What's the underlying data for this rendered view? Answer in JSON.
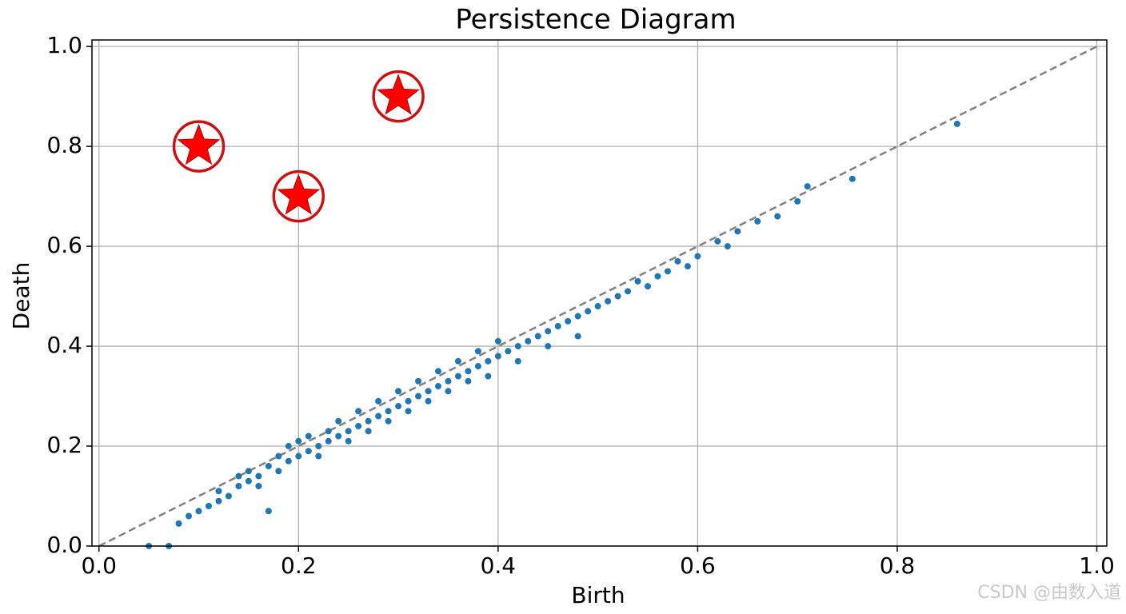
{
  "chart_data": {
    "type": "scatter",
    "title": "Persistence Diagram",
    "xlabel": "Birth",
    "ylabel": "Death",
    "xlim": [
      -0.007,
      1.01
    ],
    "ylim": [
      0,
      1.013
    ],
    "xticks": [
      {
        "value": 0,
        "label": "0.0"
      },
      0.2,
      0.4,
      0.6,
      0.8,
      {
        "value": 1,
        "label": "1.0"
      }
    ],
    "yticks": [
      {
        "value": 0,
        "label": "0.0"
      },
      0.2,
      0.4,
      0.6,
      0.8,
      {
        "value": 1,
        "label": "1.0"
      }
    ],
    "grid": true,
    "diagonal": {
      "x": [
        0,
        1
      ],
      "values": [
        0,
        1
      ],
      "color": "#808080",
      "style": "dashed"
    },
    "series": [
      {
        "color": "#1f77b4",
        "marker": "dot",
        "x": [
          0.05,
          0.07,
          0.08,
          0.09,
          0.1,
          0.11,
          0.12,
          0.12,
          0.13,
          0.14,
          0.14,
          0.15,
          0.15,
          0.16,
          0.16,
          0.17,
          0.17,
          0.18,
          0.18,
          0.19,
          0.19,
          0.2,
          0.2,
          0.21,
          0.21,
          0.22,
          0.22,
          0.23,
          0.23,
          0.24,
          0.24,
          0.25,
          0.25,
          0.26,
          0.26,
          0.27,
          0.27,
          0.28,
          0.28,
          0.29,
          0.29,
          0.3,
          0.3,
          0.31,
          0.31,
          0.32,
          0.32,
          0.33,
          0.33,
          0.34,
          0.34,
          0.35,
          0.35,
          0.36,
          0.36,
          0.37,
          0.37,
          0.38,
          0.38,
          0.39,
          0.39,
          0.4,
          0.4,
          0.41,
          0.42,
          0.42,
          0.43,
          0.44,
          0.45,
          0.45,
          0.46,
          0.47,
          0.48,
          0.48,
          0.49,
          0.5,
          0.51,
          0.52,
          0.53,
          0.54,
          0.55,
          0.56,
          0.57,
          0.58,
          0.59,
          0.6,
          0.62,
          0.63,
          0.64,
          0.66,
          0.68,
          0.7,
          0.71,
          0.755,
          0.86
        ],
        "values": [
          0.0,
          0.0,
          0.045,
          0.06,
          0.07,
          0.08,
          0.09,
          0.11,
          0.1,
          0.12,
          0.14,
          0.13,
          0.15,
          0.14,
          0.12,
          0.16,
          0.07,
          0.15,
          0.18,
          0.17,
          0.2,
          0.18,
          0.21,
          0.19,
          0.22,
          0.2,
          0.18,
          0.21,
          0.23,
          0.22,
          0.25,
          0.23,
          0.21,
          0.24,
          0.27,
          0.25,
          0.23,
          0.26,
          0.29,
          0.27,
          0.25,
          0.28,
          0.31,
          0.29,
          0.27,
          0.3,
          0.33,
          0.31,
          0.29,
          0.32,
          0.35,
          0.33,
          0.31,
          0.34,
          0.37,
          0.35,
          0.33,
          0.36,
          0.39,
          0.37,
          0.34,
          0.38,
          0.41,
          0.39,
          0.4,
          0.37,
          0.41,
          0.42,
          0.43,
          0.4,
          0.44,
          0.45,
          0.46,
          0.42,
          0.47,
          0.48,
          0.49,
          0.5,
          0.51,
          0.53,
          0.52,
          0.54,
          0.55,
          0.57,
          0.56,
          0.58,
          0.61,
          0.6,
          0.63,
          0.65,
          0.66,
          0.69,
          0.72,
          0.735,
          0.845
        ]
      },
      {
        "color": "#ff0000",
        "marker": "star",
        "x": [
          0.1,
          0.2,
          0.3
        ],
        "values": [
          0.8,
          0.7,
          0.9
        ]
      }
    ]
  },
  "watermark": "CSDN @由数入道"
}
